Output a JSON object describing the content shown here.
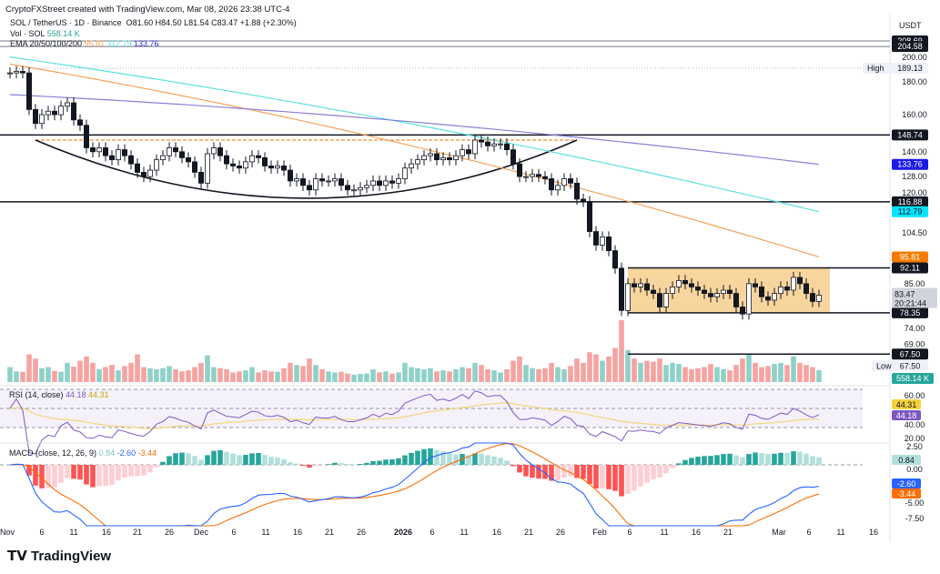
{
  "header": {
    "credit": "CryptoFXStreet created with TradingView.com, Mar 08, 2026 23:38 UTC-4",
    "symbol_line": "SOL / TetherUS · 1D · Binance",
    "ohlc": "O81.60  H84.50  L81.54  C83.47  +1.88 (+2.30%)",
    "vol_label": "Vol · SOL",
    "vol_value": "558.14 K",
    "ema_label": "EMA 20/50/100/200",
    "ema_values": [
      "95.81",
      "112.79",
      "133.76"
    ]
  },
  "axis": {
    "currency": "USDT",
    "high_label": "High",
    "low_label": "Low"
  },
  "footer": {
    "logo_text": "TradingView"
  },
  "colors": {
    "up": "#26a69a",
    "down": "#ef5350",
    "vol_up": "#8fd1c9",
    "vol_down": "#f5a3a1",
    "ema50": "#f5a25a",
    "ema100": "#5ce0e0",
    "ema200": "#8a7fd6",
    "box": "#f7c77e",
    "rsi": "#7e57c2",
    "rsi_ma": "#f4d77b",
    "macd": "#2962ff",
    "signal": "#ff6d00"
  },
  "chart_data": {
    "type": "candlestick",
    "scale": "log",
    "price_ticks": [
      200,
      180,
      160,
      140,
      128,
      120,
      104.5,
      85,
      74,
      69
    ],
    "x_ticks": [
      "Nov",
      "6",
      "11",
      "16",
      "21",
      "26",
      "Dec",
      "6",
      "11",
      "16",
      "21",
      "26",
      "2026",
      "6",
      "11",
      "16",
      "21",
      "26",
      "Feb",
      "6",
      "11",
      "16",
      "21",
      "Mar",
      "6",
      "11",
      "16"
    ],
    "start_date": "2025-11-01",
    "close": [
      186,
      187,
      186,
      163,
      155,
      160,
      162,
      160,
      165,
      167,
      157,
      154,
      142,
      140,
      142,
      138,
      136,
      141,
      138,
      134,
      130,
      128,
      131,
      136,
      138,
      142,
      140,
      137,
      135,
      130,
      125,
      139,
      142,
      138,
      134,
      133,
      132,
      135,
      138,
      137,
      133,
      132,
      133,
      131,
      126,
      127,
      124,
      122,
      127,
      126,
      126,
      127,
      124,
      122,
      122,
      123,
      124,
      126,
      124,
      126,
      125,
      127,
      132,
      134,
      136,
      138,
      139,
      136,
      137,
      136,
      138,
      141,
      139,
      146,
      145,
      143,
      144,
      144,
      141,
      134,
      128,
      128,
      129,
      128,
      127,
      122,
      124,
      127,
      125,
      118,
      117,
      105,
      100,
      103,
      98,
      92,
      79,
      87,
      86,
      87,
      85,
      84,
      80,
      84,
      86,
      88,
      87,
      86,
      85,
      84,
      83,
      84,
      85,
      84,
      80,
      78,
      87,
      86,
      83,
      82,
      84,
      86,
      85,
      89,
      87,
      84,
      81.6,
      83.47
    ],
    "volume": [
      700,
      500,
      480,
      1300,
      1100,
      650,
      700,
      520,
      480,
      900,
      720,
      1000,
      1200,
      900,
      600,
      700,
      800,
      550,
      750,
      900,
      1300,
      700,
      650,
      600,
      650,
      750,
      600,
      500,
      550,
      700,
      900,
      1250,
      700,
      650,
      600,
      450,
      500,
      550,
      700,
      450,
      550,
      500,
      480,
      650,
      900,
      800,
      750,
      1100,
      800,
      600,
      500,
      450,
      480,
      400,
      350,
      380,
      400,
      600,
      450,
      500,
      400,
      450,
      900,
      700,
      650,
      600,
      650,
      500,
      550,
      500,
      600,
      700,
      650,
      900,
      800,
      600,
      550,
      450,
      600,
      1000,
      1200,
      800,
      650,
      600,
      650,
      900,
      700,
      600,
      750,
      1100,
      900,
      1400,
      1300,
      1000,
      1200,
      1600,
      2900,
      1500,
      1100,
      900,
      1000,
      950,
      1100,
      800,
      900,
      850,
      700,
      600,
      650,
      700,
      850,
      700,
      600,
      550,
      800,
      1100,
      1300,
      900,
      700,
      750,
      850,
      900,
      800,
      1200,
      900,
      800,
      700,
      558.14
    ],
    "levels": [
      {
        "value": 208.69,
        "label": "208.69",
        "style": "solid"
      },
      {
        "value": 204.58,
        "label": "204.58",
        "style": "solid"
      },
      {
        "value": 148.74,
        "label": "148.74",
        "style": "solid"
      },
      {
        "value": 116.88,
        "label": "116.88",
        "style": "solid"
      },
      {
        "value": 92.11,
        "label": "92.11",
        "style": "solid"
      },
      {
        "value": 78.35,
        "label": "78.35",
        "style": "solid"
      },
      {
        "value": 67.5,
        "label": "67.50",
        "style": "solid"
      }
    ],
    "high": {
      "value": 189.13,
      "label": "189.13"
    },
    "low": {
      "value": 67.5,
      "label": "67.50"
    },
    "last": {
      "value": 83.47,
      "label": "83.47",
      "countdown": "20:21:44"
    },
    "ema": [
      {
        "name": "EMA 50",
        "label": "95.81",
        "start": 192,
        "mid": 150,
        "end": 95.81
      },
      {
        "name": "EMA 100",
        "label": "112.79",
        "start": 197,
        "mid": 160,
        "end": 112.79
      },
      {
        "name": "EMA 200",
        "label": "133.76",
        "start": 172,
        "mid": 160,
        "end": 133.76
      }
    ],
    "neckline": {
      "value": 146
    },
    "range_box": {
      "top": 92.11,
      "bottom": 78.35
    },
    "rsi": {
      "title": "RSI (14, close)",
      "value": "44.18",
      "ma": "44.31",
      "ticks": [
        "60.00",
        "40.00",
        "20.00"
      ]
    },
    "macd": {
      "title": "MACD (close, 12, 26, 9)",
      "hist": "0.84",
      "macd": "-2.60",
      "signal": "-3.44",
      "ticks": [
        "2.50",
        "0.00",
        "-5.00",
        "-7.50"
      ]
    }
  }
}
